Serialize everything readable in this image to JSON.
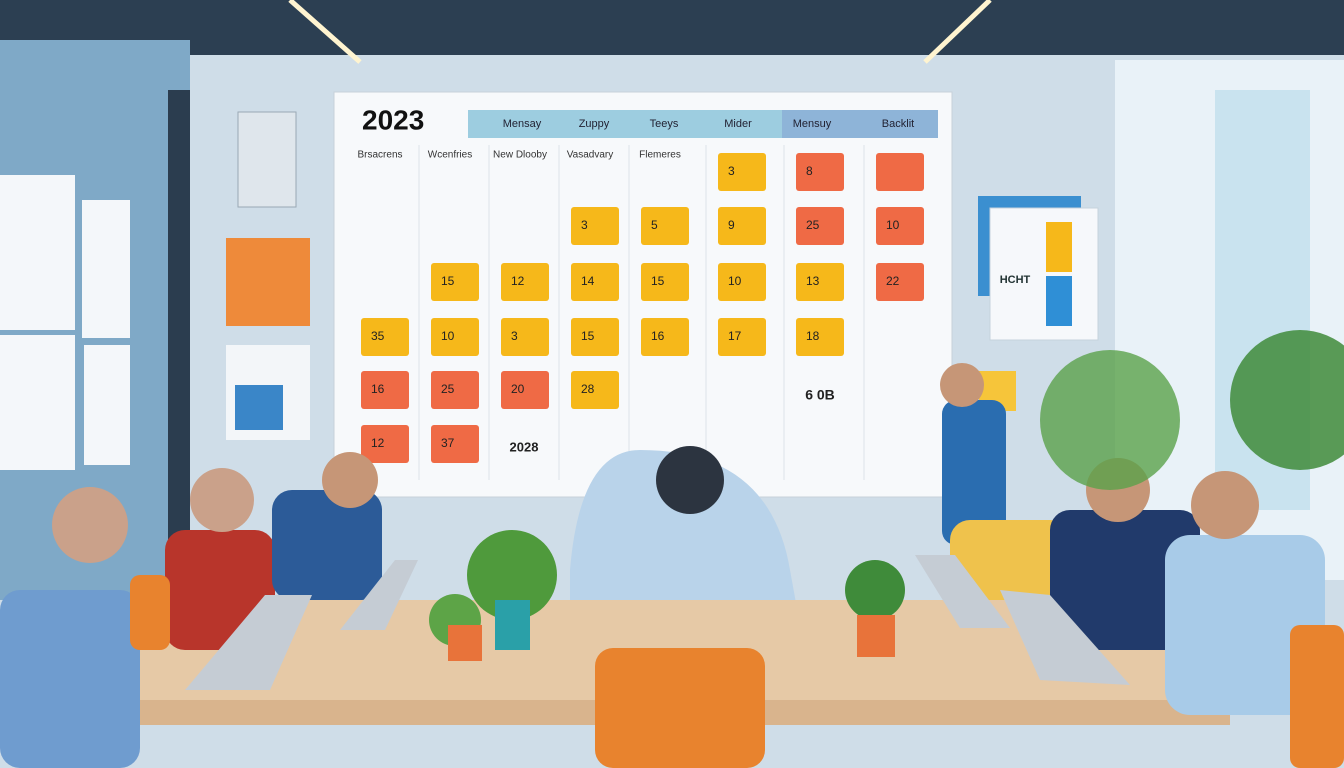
{
  "calendar": {
    "year": "2023",
    "headers": [
      "Mensay",
      "Zuppy",
      "Teeys",
      "Mider",
      "Mensuy",
      "Backlit"
    ],
    "columns": [
      "Brsacrens",
      "Wcenfries",
      "New Dlooby",
      "Vasadvary",
      "Flemeres"
    ],
    "notes": [
      {
        "label": "3",
        "color": "#f6b81a"
      },
      {
        "label": "9",
        "color": "#f6b81a"
      },
      {
        "label": "10",
        "color": "#f6b81a"
      },
      {
        "label": "17",
        "color": "#f6b81a"
      },
      {
        "label": "8",
        "color": "#ef6a45"
      },
      {
        "label": "25",
        "color": "#ef6a45"
      },
      {
        "label": "13",
        "color": "#f6b81a"
      },
      {
        "label": "18",
        "color": "#f6b81a"
      },
      {
        "color": "#ef6a45"
      },
      {
        "label": "10",
        "color": "#ef6a45"
      },
      {
        "label": "22",
        "color": "#ef6a45"
      },
      {
        "label": "3",
        "color": "#f6b81a"
      },
      {
        "label": "14",
        "color": "#f6b81a"
      },
      {
        "label": "15",
        "color": "#f6b81a"
      },
      {
        "label": "28",
        "color": "#f6b81a"
      },
      {
        "label": "5",
        "color": "#f6b81a"
      },
      {
        "label": "15",
        "color": "#f6b81a"
      },
      {
        "label": "16",
        "color": "#f6b81a"
      },
      {
        "label": "12",
        "color": "#f6b81a"
      },
      {
        "label": "3",
        "color": "#f6b81a"
      },
      {
        "label": "20",
        "color": "#ef6a45"
      },
      {
        "label": "15",
        "color": "#f6b81a"
      },
      {
        "label": "10",
        "color": "#f6b81a"
      },
      {
        "label": "25",
        "color": "#ef6a45"
      },
      {
        "label": "37",
        "color": "#ef6a45"
      },
      {
        "label": "35",
        "color": "#f6b81a"
      },
      {
        "label": "16",
        "color": "#ef6a45"
      },
      {
        "label": "12",
        "color": "#ef6a45"
      }
    ],
    "footnote": "6 0B",
    "year_note": "2028"
  },
  "poster": {
    "title": "HCHT"
  }
}
